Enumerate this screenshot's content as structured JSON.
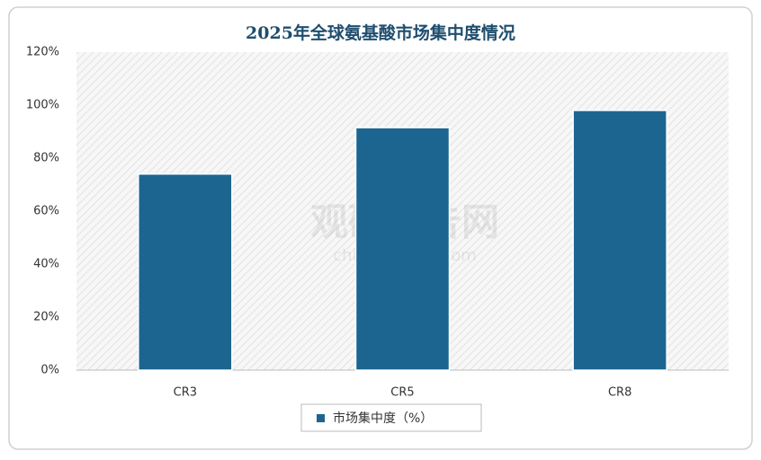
{
  "chart_data": {
    "type": "bar",
    "title": "2025年全球氨基酸市场集中度情况",
    "categories": [
      "CR3",
      "CR5",
      "CR8"
    ],
    "series": [
      {
        "name": "市场集中度（%）",
        "color": "#1c6590",
        "values": [
          74,
          91.5,
          98
        ]
      }
    ],
    "ylim": [
      0,
      120
    ],
    "yticks": [
      {
        "value": 0,
        "label": "0%"
      },
      {
        "value": 20,
        "label": "20%"
      },
      {
        "value": 40,
        "label": "40%"
      },
      {
        "value": 60,
        "label": "60%"
      },
      {
        "value": 80,
        "label": "80%"
      },
      {
        "value": 100,
        "label": "100%"
      },
      {
        "value": 120,
        "label": "120%"
      }
    ],
    "legend": "bottom",
    "watermark": [
      "观研报告网",
      "chinabaogao.com"
    ]
  }
}
